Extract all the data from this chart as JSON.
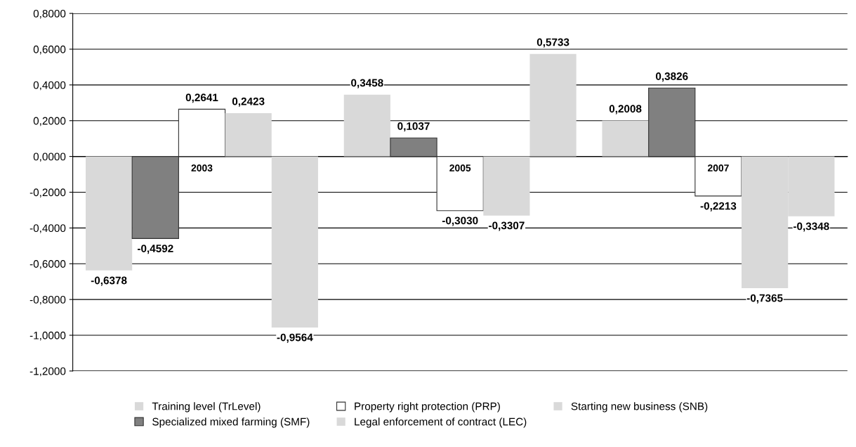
{
  "chart_data": {
    "type": "bar",
    "categories": [
      "2003",
      "2005",
      "2007"
    ],
    "series": [
      {
        "name": "Training level (TrLevel)",
        "color": "#d9d9d9",
        "values": [
          -0.6378,
          0.3458,
          0.2008
        ],
        "value_labels": [
          "-0,6378",
          "0,3458",
          "0,2008"
        ]
      },
      {
        "name": "Specialized mixed farming (SMF)",
        "color": "#808080",
        "values": [
          -0.4592,
          0.1037,
          0.3826
        ],
        "value_labels": [
          "-0,4592",
          "0,1037",
          "0,3826"
        ]
      },
      {
        "name": "Property right protection (PRP)",
        "color": "#ffffff",
        "values": [
          0.2641,
          -0.303,
          -0.2213
        ],
        "value_labels": [
          "0,2641",
          "-0,3030",
          "-0,2213"
        ]
      },
      {
        "name": "Legal enforcement of contract (LEC)",
        "color": "#d9d9d9",
        "values": [
          0.2423,
          -0.3307,
          -0.7365
        ],
        "value_labels": [
          "0,2423",
          "-0,3307",
          "-0,7365"
        ]
      },
      {
        "name": "Starting new business (SNB)",
        "color": "#d9d9d9",
        "values": [
          -0.9564,
          0.5733,
          -0.3348
        ],
        "value_labels": [
          "-0,9564",
          "0,5733",
          "-0,3348"
        ]
      }
    ],
    "ylim": [
      -1.2,
      0.8
    ],
    "yticks": [
      {
        "value": -1.2,
        "label": "-1,2000"
      },
      {
        "value": -1.0,
        "label": "-1,0000"
      },
      {
        "value": -0.8,
        "label": "-0,8000"
      },
      {
        "value": -0.6,
        "label": "-0,6000"
      },
      {
        "value": -0.4,
        "label": "-0,4000"
      },
      {
        "value": -0.2,
        "label": "-0,2000"
      },
      {
        "value": 0.0,
        "label": "0,0000"
      },
      {
        "value": 0.2,
        "label": "0,2000"
      },
      {
        "value": 0.4,
        "label": "0,4000"
      },
      {
        "value": 0.6,
        "label": "0,6000"
      },
      {
        "value": 0.8,
        "label": "0,8000"
      }
    ],
    "grid": "y",
    "legend": "bottom"
  }
}
